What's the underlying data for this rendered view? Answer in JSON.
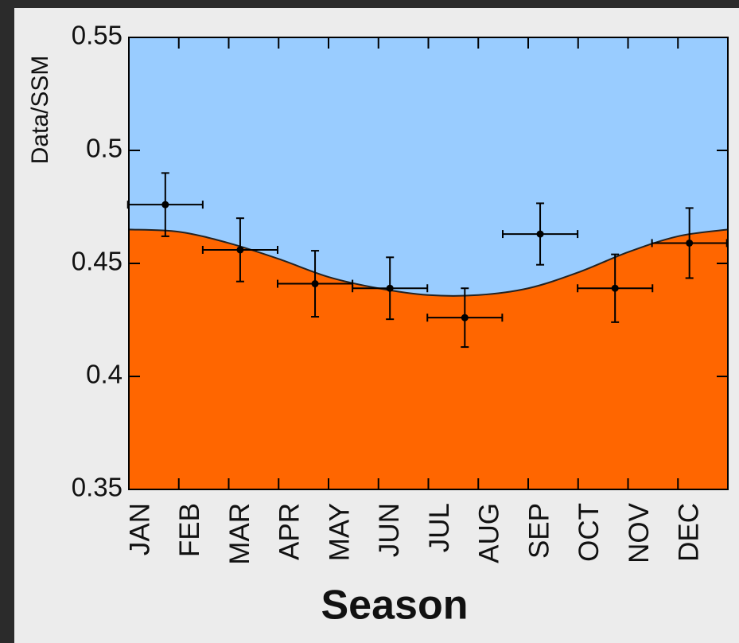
{
  "chart_data": {
    "type": "scatter",
    "x_label": "Season",
    "y_label": "Data/SSM",
    "categories": [
      "JAN",
      "FEB",
      "MAR",
      "APR",
      "MAY",
      "JUN",
      "JUL",
      "AUG",
      "SEP",
      "OCT",
      "NOV",
      "DEC"
    ],
    "xlim": [
      0,
      12
    ],
    "ylim": [
      0.35,
      0.55
    ],
    "yticks": [
      0.35,
      0.4,
      0.45,
      0.5,
      0.55
    ],
    "points": {
      "color": "#000000",
      "x": [
        0.73,
        2.23,
        3.73,
        5.23,
        6.73,
        8.24,
        9.74,
        11.23
      ],
      "values": [
        0.476,
        0.456,
        0.441,
        0.439,
        0.426,
        0.463,
        0.439,
        0.459
      ],
      "x_errors": [
        0.75,
        0.75,
        0.75,
        0.75,
        0.75,
        0.75,
        0.75,
        0.75
      ],
      "y_errors": [
        0.014,
        0.014,
        0.0146,
        0.0137,
        0.013,
        0.0136,
        0.015,
        0.0155
      ]
    },
    "curve": {
      "color": "#222222",
      "fill_below": "#ff6600",
      "fill_above": "#99ccff",
      "x": [
        0,
        1,
        2,
        3,
        4,
        5,
        6,
        7,
        8,
        9,
        10,
        11,
        12
      ],
      "values": [
        0.465,
        0.464,
        0.459,
        0.452,
        0.444,
        0.439,
        0.436,
        0.436,
        0.439,
        0.446,
        0.455,
        0.462,
        0.465
      ]
    }
  }
}
